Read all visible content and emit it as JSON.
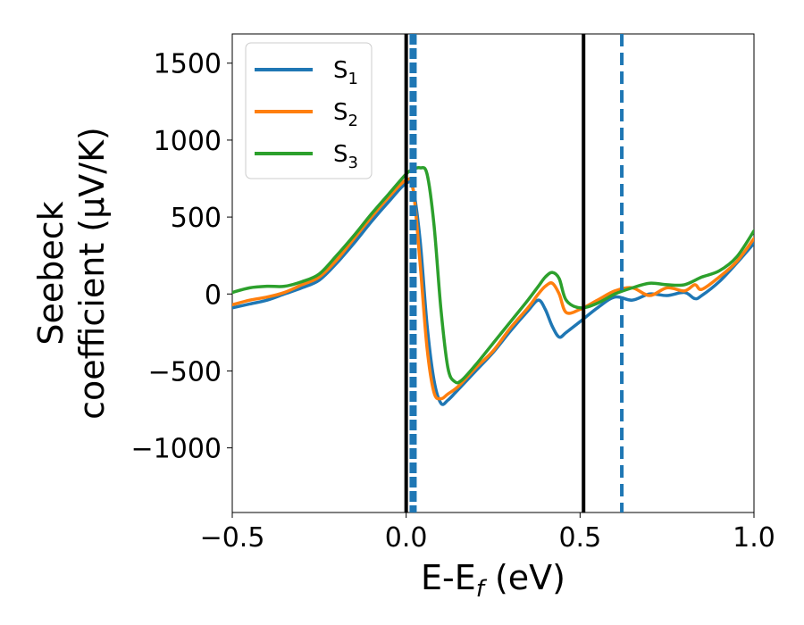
{
  "chart_data": {
    "type": "line",
    "xlabel": "E-E",
    "xlabel_sub": "f",
    "xlabel_unit": " (eV)",
    "ylabel_line1": "Seebeck",
    "ylabel_line2": "coefficient  (μV/K)",
    "xlim": [
      -0.5,
      1.0
    ],
    "ylim": [
      -1420,
      1690
    ],
    "xticks": [
      -0.5,
      0.0,
      0.5,
      1.0
    ],
    "xtick_labels": [
      "−0.5",
      "0.0",
      "0.5",
      "1.0"
    ],
    "yticks": [
      -1000,
      -500,
      0,
      500,
      1000,
      1500
    ],
    "ytick_labels": [
      "−1000",
      "−500",
      "0",
      "500",
      "1000",
      "1500"
    ],
    "grid": false,
    "legend_position": "upper-left",
    "series": [
      {
        "name": "S",
        "sub": "1",
        "color": "#1f77b4",
        "x": [
          -0.5,
          -0.45,
          -0.4,
          -0.35,
          -0.3,
          -0.25,
          -0.2,
          -0.15,
          -0.1,
          -0.05,
          0.0,
          0.02,
          0.04,
          0.06,
          0.08,
          0.1,
          0.12,
          0.15,
          0.2,
          0.25,
          0.3,
          0.35,
          0.38,
          0.4,
          0.42,
          0.44,
          0.46,
          0.5,
          0.55,
          0.6,
          0.65,
          0.7,
          0.75,
          0.8,
          0.83,
          0.85,
          0.9,
          0.95,
          1.0
        ],
        "y": [
          -90,
          -65,
          -40,
          0,
          40,
          90,
          200,
          330,
          470,
          600,
          720,
          680,
          350,
          -200,
          -560,
          -710,
          -690,
          -620,
          -500,
          -380,
          -240,
          -110,
          -40,
          -100,
          -210,
          -280,
          -250,
          -180,
          -90,
          -20,
          -40,
          0,
          -10,
          10,
          -30,
          -10,
          80,
          200,
          330
        ]
      },
      {
        "name": "S",
        "sub": "2",
        "color": "#ff7f0e",
        "x": [
          -0.5,
          -0.45,
          -0.4,
          -0.35,
          -0.3,
          -0.25,
          -0.2,
          -0.15,
          -0.1,
          -0.05,
          0.0,
          0.02,
          0.04,
          0.06,
          0.08,
          0.1,
          0.12,
          0.15,
          0.2,
          0.25,
          0.3,
          0.35,
          0.38,
          0.4,
          0.42,
          0.44,
          0.46,
          0.5,
          0.55,
          0.6,
          0.65,
          0.7,
          0.75,
          0.8,
          0.83,
          0.85,
          0.9,
          0.95,
          1.0
        ],
        "y": [
          -70,
          -40,
          -20,
          10,
          60,
          110,
          220,
          360,
          500,
          630,
          740,
          680,
          200,
          -350,
          -640,
          -680,
          -650,
          -600,
          -480,
          -370,
          -220,
          -90,
          0,
          50,
          70,
          0,
          -120,
          -100,
          -40,
          20,
          40,
          -10,
          40,
          20,
          60,
          30,
          110,
          210,
          360
        ]
      },
      {
        "name": "S",
        "sub": "3",
        "color": "#2ca02c",
        "x": [
          -0.5,
          -0.45,
          -0.4,
          -0.35,
          -0.3,
          -0.25,
          -0.2,
          -0.15,
          -0.1,
          -0.05,
          0.0,
          0.02,
          0.04,
          0.06,
          0.08,
          0.1,
          0.12,
          0.14,
          0.16,
          0.2,
          0.25,
          0.3,
          0.35,
          0.38,
          0.4,
          0.42,
          0.44,
          0.46,
          0.5,
          0.55,
          0.6,
          0.65,
          0.7,
          0.75,
          0.8,
          0.85,
          0.9,
          0.95,
          1.0
        ],
        "y": [
          10,
          40,
          50,
          50,
          80,
          130,
          250,
          380,
          520,
          650,
          780,
          810,
          820,
          780,
          450,
          -100,
          -480,
          -570,
          -560,
          -460,
          -320,
          -180,
          -40,
          50,
          110,
          140,
          100,
          -40,
          -90,
          -60,
          0,
          40,
          70,
          60,
          60,
          110,
          150,
          240,
          410
        ]
      }
    ],
    "vertical_lines": [
      {
        "x": 0.0,
        "color": "#000000",
        "style": "solid"
      },
      {
        "x": 0.51,
        "color": "#000000",
        "style": "solid"
      },
      {
        "x": 0.02,
        "color": "#1f77b4",
        "style": "dashed-thick"
      },
      {
        "x": 0.62,
        "color": "#1f77b4",
        "style": "dashed"
      }
    ]
  }
}
